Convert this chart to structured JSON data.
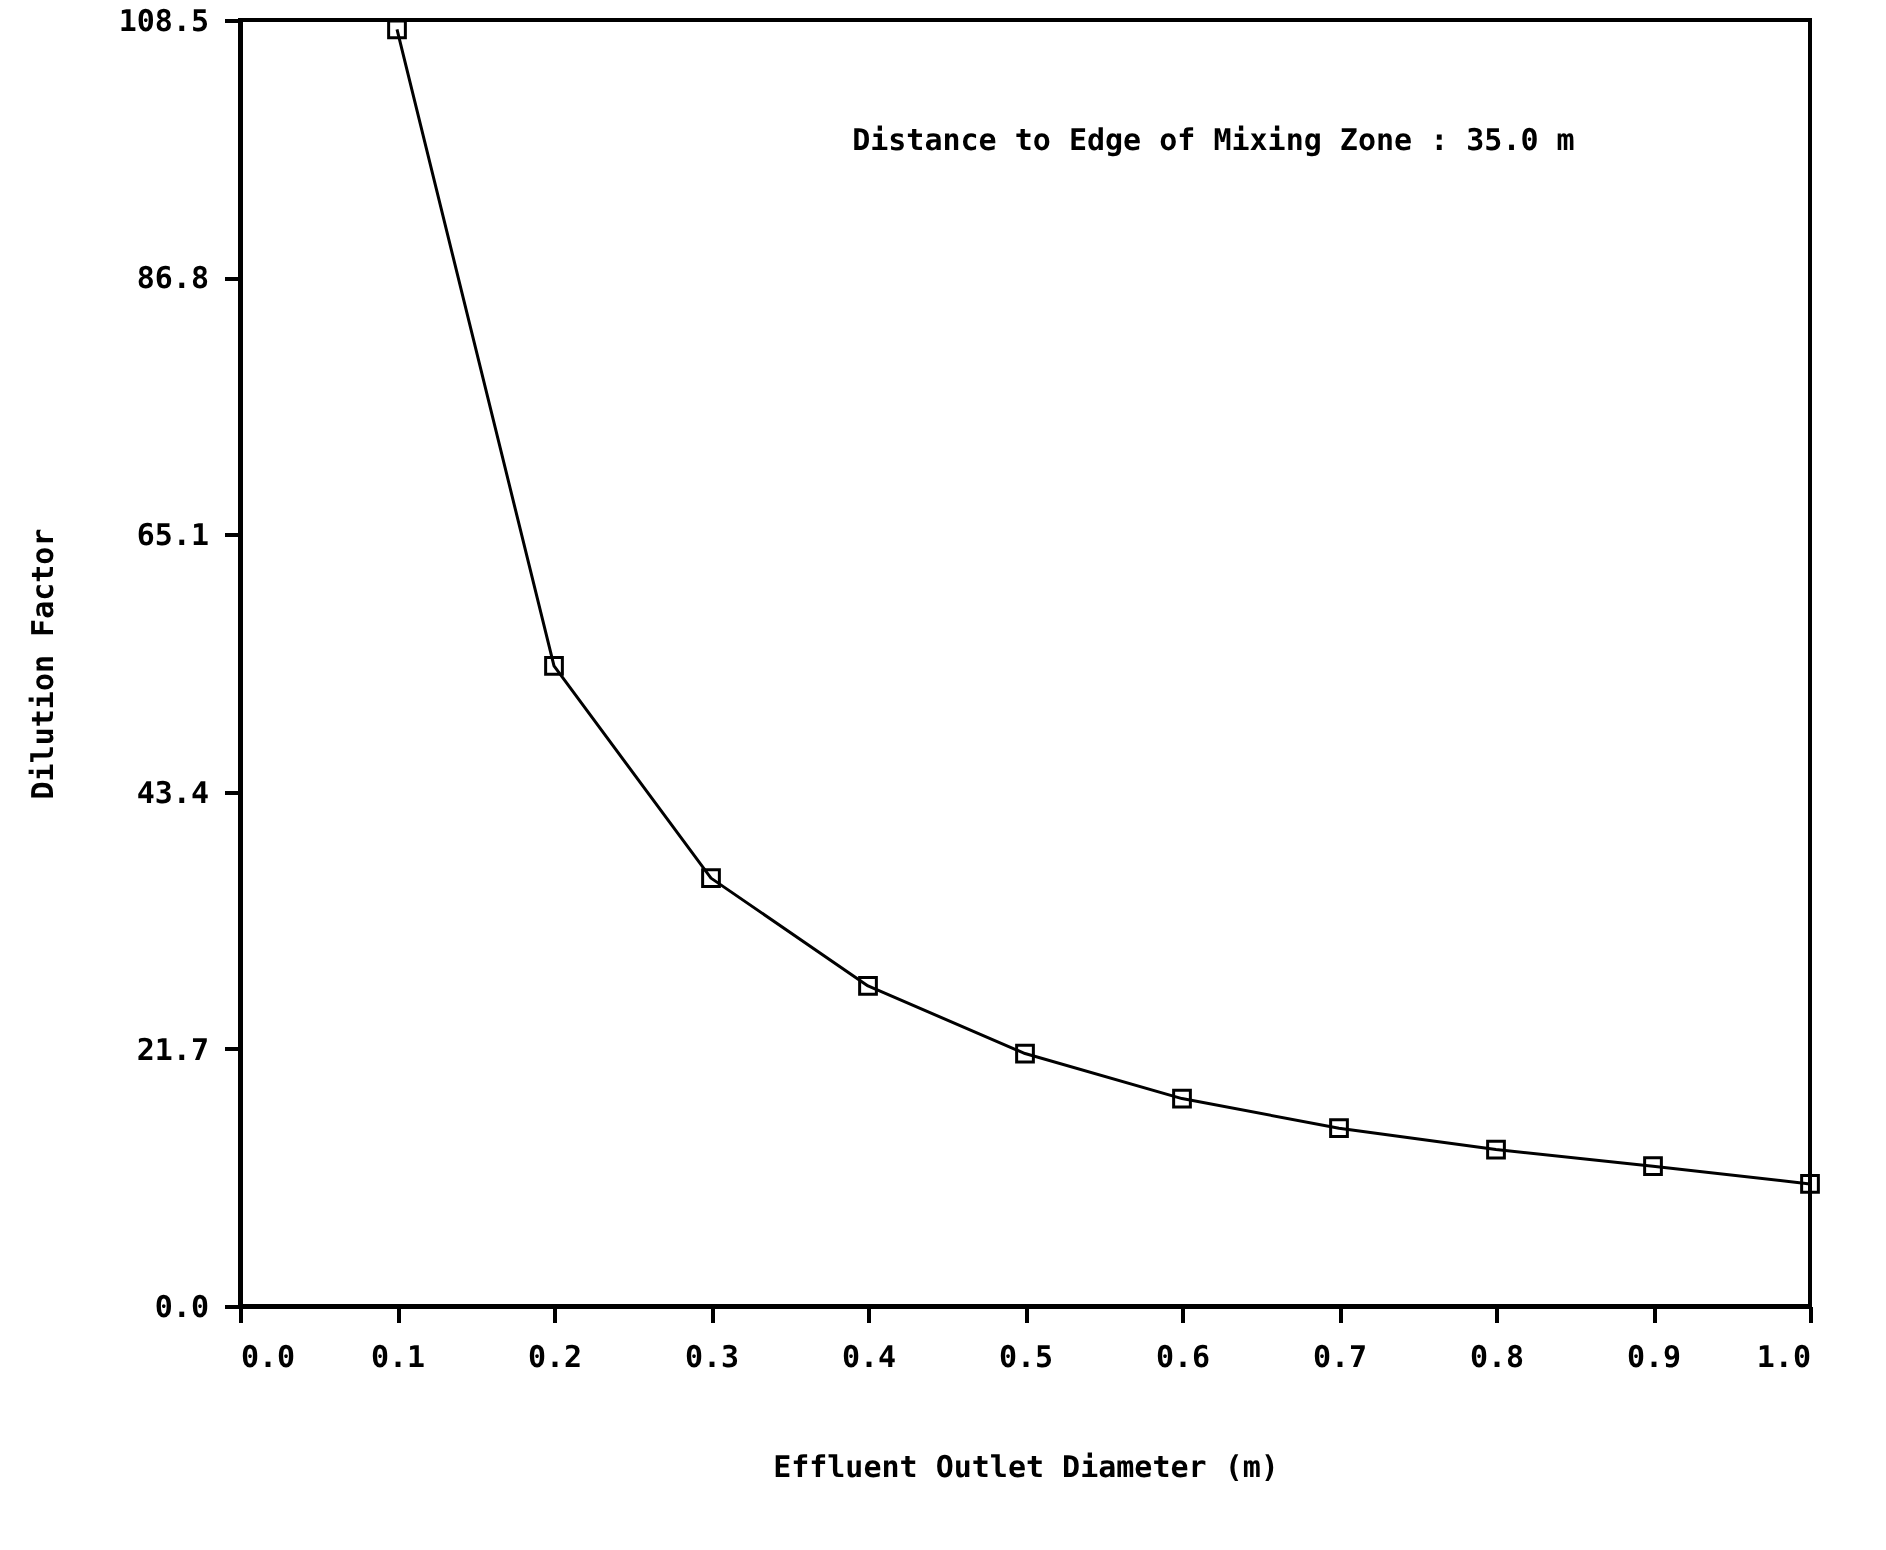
{
  "chart_data": {
    "type": "line",
    "x": [
      0.1,
      0.2,
      0.3,
      0.4,
      0.5,
      0.6,
      0.7,
      0.8,
      0.9,
      1.0
    ],
    "series": [
      {
        "color": "#000000",
        "values": [
          107.7,
          54.0,
          36.1,
          27.0,
          21.3,
          17.5,
          15.0,
          13.2,
          11.8,
          10.3
        ]
      }
    ],
    "xlabel": "Effluent Outlet Diameter (m)",
    "ylabel": "Dilution Factor",
    "annotations": [
      "Distance to Edge of Mixing Zone : 35.0 m"
    ],
    "xlim": [
      0,
      1
    ],
    "xticks": [
      {
        "value": 0,
        "label": "0.0"
      },
      0.1,
      0.2,
      0.3,
      0.4,
      0.5,
      0.6,
      0.7,
      0.8,
      0.9,
      {
        "value": 1,
        "label": "1.0"
      }
    ],
    "ylim": [
      0,
      108.5
    ],
    "yticks": [
      {
        "value": 0,
        "label": "0.0"
      },
      21.7,
      43.4,
      65.1,
      86.8,
      108.5
    ],
    "grid": false,
    "marker": "square",
    "line_style": "solid"
  }
}
